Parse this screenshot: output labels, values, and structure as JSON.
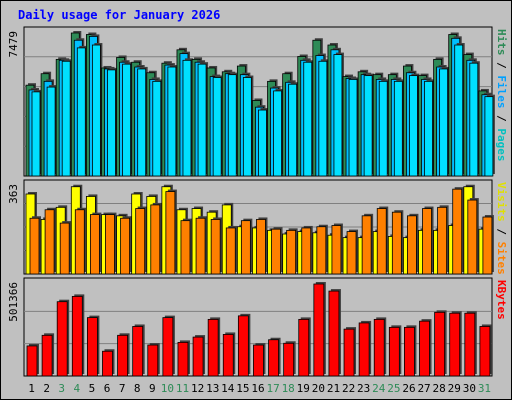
{
  "title": "Daily usage for January 2026",
  "colors": {
    "background": "#c0c0c0",
    "plot_bg": "#c0c0c0",
    "title": "#0000ff",
    "hits": "#2e8b57",
    "files": "#00c0ff",
    "pages": "#00a0c0",
    "visits": "#ffff00",
    "sites": "#ff8000",
    "kbytes": "#ff0000",
    "weekend_day": "#2e8b57",
    "weekday": "#000000"
  },
  "chart_data": [
    {
      "type": "bar",
      "name": "hits-files-pages",
      "ymax_label": "7479",
      "ylim": [
        0,
        7479
      ],
      "right_label": [
        {
          "text": "Pages",
          "color": "#00c0c0"
        },
        {
          "text": " / ",
          "color": "#000000"
        },
        {
          "text": "Files",
          "color": "#00a0ff"
        },
        {
          "text": " / ",
          "color": "#000000"
        },
        {
          "text": "Hits",
          "color": "#2e8b57"
        }
      ],
      "categories": [
        "1",
        "2",
        "3",
        "4",
        "5",
        "6",
        "7",
        "8",
        "9",
        "10",
        "11",
        "12",
        "13",
        "14",
        "15",
        "16",
        "17",
        "18",
        "19",
        "20",
        "21",
        "22",
        "23",
        "24",
        "25",
        "26",
        "27",
        "28",
        "29",
        "30",
        "31"
      ],
      "series": [
        {
          "name": "Hits",
          "values": [
            4750,
            5350,
            6100,
            7479,
            7400,
            5650,
            6200,
            5950,
            5400,
            5900,
            6600,
            6100,
            5650,
            5450,
            5750,
            3950,
            4950,
            5350,
            6250,
            7100,
            6850,
            5200,
            5450,
            5300,
            5300,
            5750,
            5250,
            6100,
            7400,
            6350,
            4450
          ]
        },
        {
          "name": "Files",
          "values": [
            4500,
            4950,
            6050,
            7100,
            7300,
            5600,
            5950,
            5700,
            5050,
            5800,
            6400,
            5950,
            5200,
            5350,
            5300,
            3600,
            4600,
            4900,
            6050,
            6300,
            6600,
            5100,
            5300,
            5050,
            5050,
            5400,
            5050,
            5700,
            7200,
            6050,
            4250
          ]
        },
        {
          "name": "Pages",
          "values": [
            4400,
            4650,
            6000,
            6700,
            6850,
            5550,
            5850,
            5600,
            4950,
            5700,
            6050,
            5850,
            5150,
            5300,
            5150,
            3450,
            4450,
            4800,
            5950,
            6000,
            6350,
            5050,
            5250,
            4950,
            4950,
            5250,
            4950,
            5600,
            6850,
            5900,
            4150
          ]
        }
      ]
    },
    {
      "type": "bar",
      "name": "visits-sites",
      "ymax_label": "363",
      "ylim": [
        0,
        363
      ],
      "right_label": [
        {
          "text": "Sites",
          "color": "#ff8000"
        },
        {
          "text": " / ",
          "color": "#000000"
        },
        {
          "text": "Visits",
          "color": "#e0e000"
        }
      ],
      "categories": [
        "1",
        "2",
        "3",
        "4",
        "5",
        "6",
        "7",
        "8",
        "9",
        "10",
        "11",
        "12",
        "13",
        "14",
        "15",
        "16",
        "17",
        "18",
        "19",
        "20",
        "21",
        "22",
        "23",
        "24",
        "25",
        "26",
        "27",
        "28",
        "29",
        "30",
        "31"
      ],
      "series": [
        {
          "name": "Visits",
          "values": [
            330,
            225,
            275,
            360,
            320,
            245,
            240,
            330,
            320,
            360,
            265,
            270,
            255,
            285,
            195,
            190,
            180,
            165,
            175,
            170,
            160,
            150,
            150,
            175,
            155,
            150,
            180,
            180,
            200,
            360,
            185
          ]
        },
        {
          "name": "Sites",
          "values": [
            230,
            265,
            210,
            265,
            245,
            245,
            230,
            270,
            285,
            340,
            220,
            230,
            225,
            190,
            220,
            225,
            185,
            180,
            190,
            195,
            200,
            175,
            240,
            270,
            255,
            240,
            270,
            275,
            350,
            305,
            235
          ]
        }
      ]
    },
    {
      "type": "bar",
      "name": "kbytes",
      "ymax_label": "501366",
      "ylim": [
        0,
        501366
      ],
      "right_label": [
        {
          "text": "KBytes",
          "color": "#ff0000"
        }
      ],
      "categories": [
        "1",
        "2",
        "3",
        "4",
        "5",
        "6",
        "7",
        "8",
        "9",
        "10",
        "11",
        "12",
        "13",
        "14",
        "15",
        "16",
        "17",
        "18",
        "19",
        "20",
        "21",
        "22",
        "23",
        "24",
        "25",
        "26",
        "27",
        "28",
        "29",
        "30",
        "31"
      ],
      "series": [
        {
          "name": "KBytes",
          "values": [
            170,
            230,
            420,
            450,
            330,
            140,
            230,
            280,
            175,
            330,
            190,
            220,
            320,
            235,
            340,
            175,
            205,
            185,
            320,
            520,
            480,
            265,
            300,
            320,
            275,
            275,
            310,
            360,
            355,
            355,
            280
          ]
        }
      ]
    }
  ],
  "days": [
    "1",
    "2",
    "3",
    "4",
    "5",
    "6",
    "7",
    "8",
    "9",
    "10",
    "11",
    "12",
    "13",
    "14",
    "15",
    "16",
    "17",
    "18",
    "19",
    "20",
    "21",
    "22",
    "23",
    "24",
    "25",
    "26",
    "27",
    "28",
    "29",
    "30",
    "31"
  ],
  "weekend_days": [
    "3",
    "4",
    "10",
    "11",
    "17",
    "18",
    "24",
    "25",
    "31"
  ]
}
